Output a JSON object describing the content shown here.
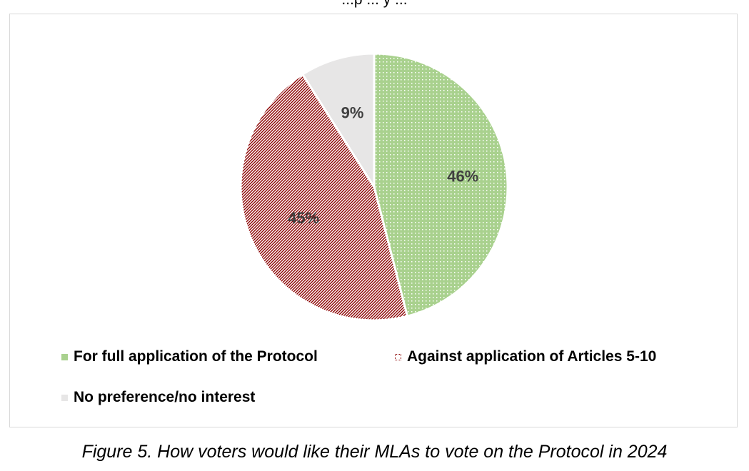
{
  "chart_data": {
    "type": "pie",
    "title": "",
    "categories": [
      "For full application of the Protocol",
      "Against application of Articles 5-10",
      "No preference/no interest"
    ],
    "values": [
      46,
      45,
      9
    ],
    "data_labels": [
      "46%",
      "45%",
      "9%"
    ],
    "colors": [
      "#a9d18e",
      "#8b0000",
      "#e7e6e6"
    ],
    "legend_placement": "bottom",
    "start_angle_deg": 0,
    "direction": "clockwise"
  },
  "title_fragment": "...p ... y ...",
  "caption": "Figure 5. How voters would like their MLAs to vote on the Protocol in 2024"
}
